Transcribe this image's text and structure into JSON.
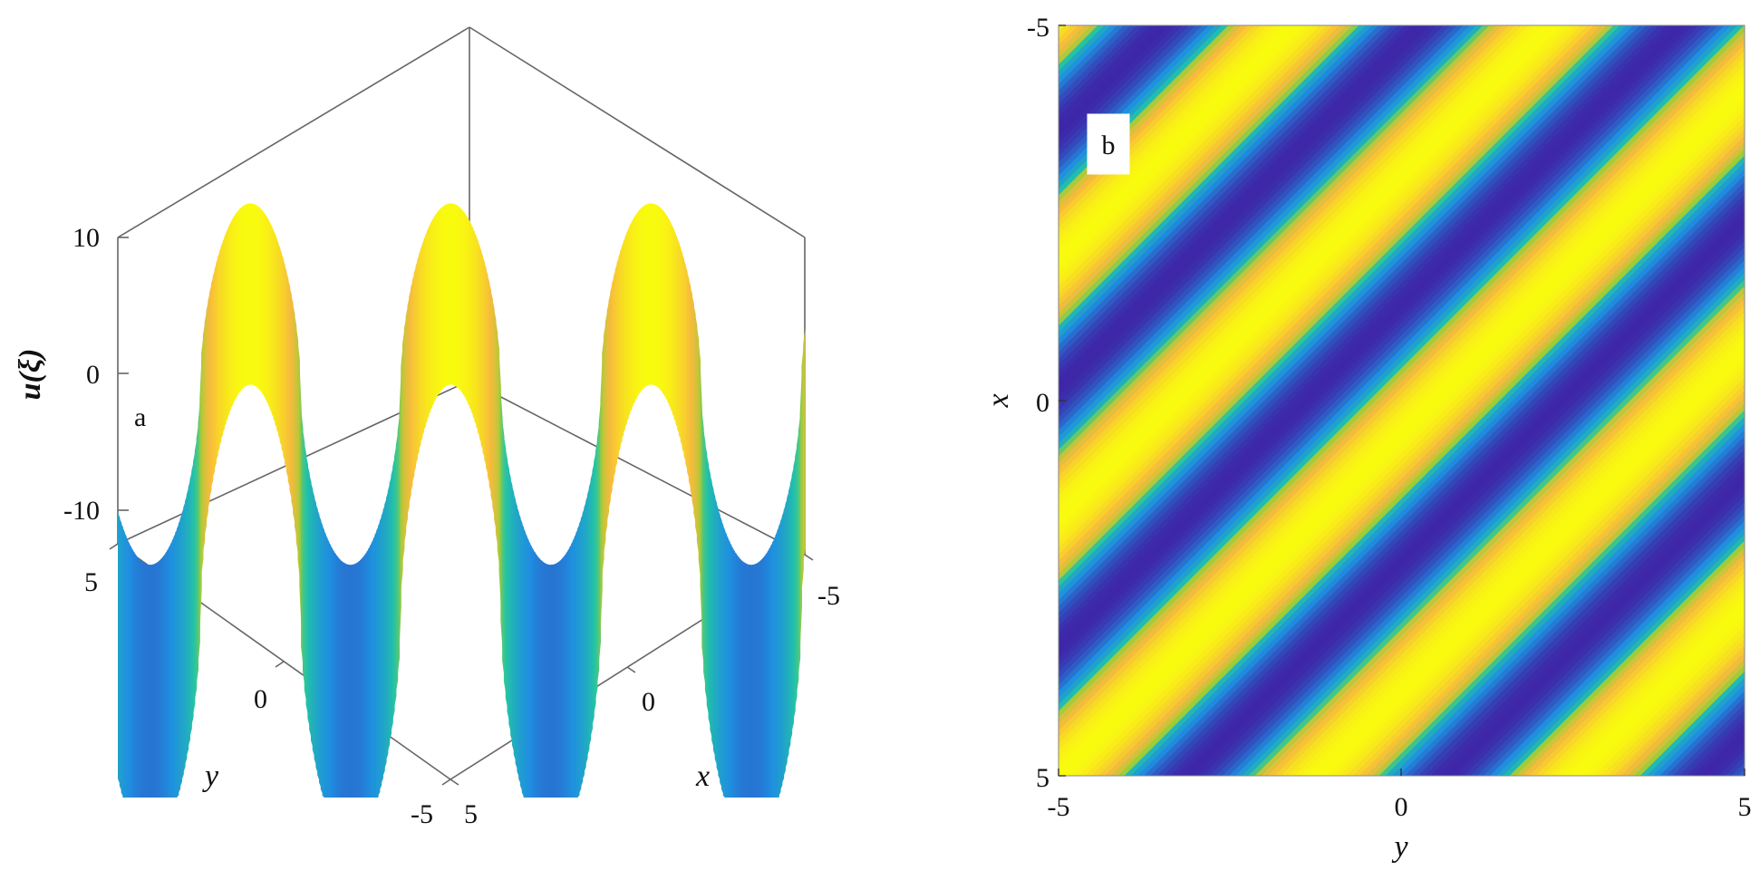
{
  "chart_data": [
    {
      "type": "surface3d",
      "panel_label": "a",
      "xlabel": "x",
      "ylabel": "y",
      "zlabel": "u(ξ)",
      "x_range": [
        -5,
        5
      ],
      "y_range": [
        -5,
        5
      ],
      "z_range": [
        -10,
        10
      ],
      "x_ticks": [
        "-5",
        "0",
        "5"
      ],
      "y_ticks": [
        "5",
        "0",
        "-5"
      ],
      "z_ticks": [
        "10",
        "0",
        "-10"
      ],
      "periodic_profile": {
        "along": "x+y",
        "period": 3.5,
        "peak": 12.5,
        "trough": -14
      },
      "colormap": [
        "#3e26a8",
        "#1f8fe0",
        "#23c3a6",
        "#9ecc3a",
        "#f7bb3c",
        "#f9fb0e"
      ],
      "grid": false
    },
    {
      "type": "heatmap",
      "panel_label": "b",
      "xlabel": "y",
      "ylabel": "x",
      "x_range": [
        -5,
        5
      ],
      "y_range": [
        -5,
        5
      ],
      "x_ticks": [
        "-5",
        "0",
        "5"
      ],
      "y_ticks": [
        "-5",
        "0",
        "5"
      ],
      "stripe_direction": "diagonal, from lower-left to upper-right",
      "stripe_period": 3.5,
      "colormap": [
        "#3e26a8",
        "#1f8fe0",
        "#23c3a6",
        "#9ecc3a",
        "#f7bb3c",
        "#f9fb0e"
      ]
    }
  ]
}
